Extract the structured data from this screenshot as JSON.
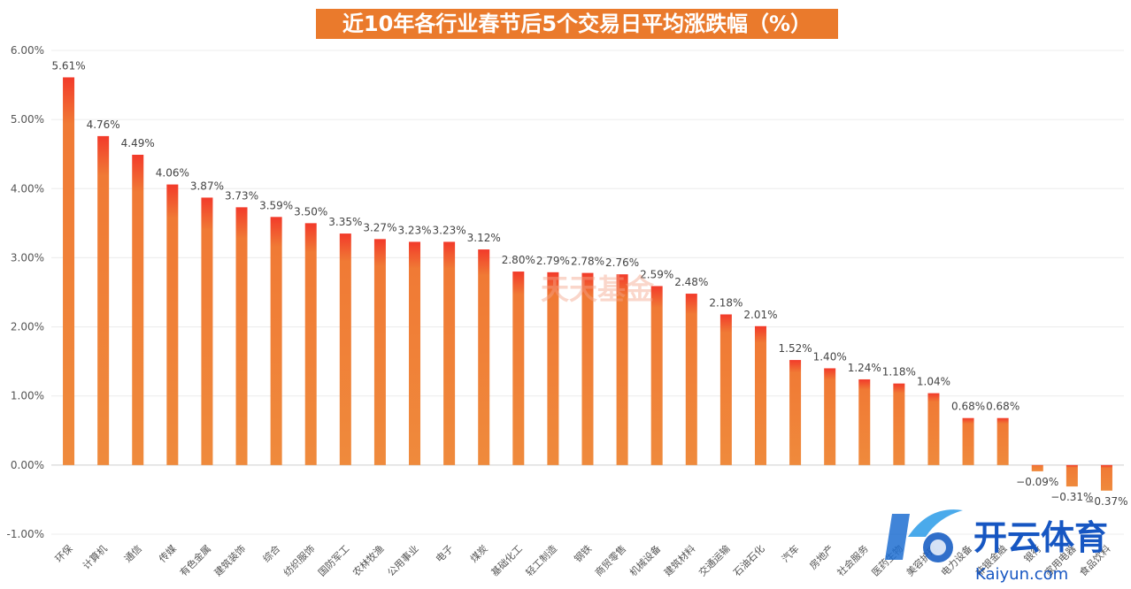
{
  "chart_data": {
    "type": "bar",
    "title": "近10年各行业春节后5个交易日平均涨跌幅（%）",
    "categories": [
      "环保",
      "计算机",
      "通信",
      "传媒",
      "有色金属",
      "建筑装饰",
      "综合",
      "纺织服饰",
      "国防军工",
      "农林牧渔",
      "公用事业",
      "电子",
      "煤炭",
      "基础化工",
      "轻工制造",
      "钢铁",
      "商贸零售",
      "机械设备",
      "建筑材料",
      "交通运输",
      "石油石化",
      "汽车",
      "房地产",
      "社会服务",
      "医药生物",
      "美容护理",
      "电力设备",
      "非银金融",
      "银行",
      "家用电器",
      "食品饮料"
    ],
    "values": [
      5.61,
      4.76,
      4.49,
      4.06,
      3.87,
      3.73,
      3.59,
      3.5,
      3.35,
      3.27,
      3.23,
      3.23,
      3.12,
      2.8,
      2.79,
      2.78,
      2.76,
      2.59,
      2.48,
      2.18,
      2.01,
      1.52,
      1.4,
      1.24,
      1.18,
      1.04,
      0.68,
      0.68,
      -0.09,
      -0.31,
      -0.37
    ],
    "value_labels": [
      "5.61%",
      "4.76%",
      "4.49%",
      "4.06%",
      "3.87%",
      "3.73%",
      "3.59%",
      "3.50%",
      "3.35%",
      "3.27%",
      "3.23%",
      "3.23%",
      "3.12%",
      "2.80%",
      "2.79%",
      "2.78%",
      "2.76%",
      "2.59%",
      "2.48%",
      "2.18%",
      "2.01%",
      "1.52%",
      "1.40%",
      "1.24%",
      "1.18%",
      "1.04%",
      "0.68%",
      "0.68%",
      "−0.09%",
      "−0.31%",
      "−0.37%"
    ],
    "y_ticks": [
      6,
      5,
      4,
      3,
      2,
      1,
      0,
      -1
    ],
    "y_tick_labels": [
      "6.00%",
      "5.00%",
      "4.00%",
      "3.00%",
      "2.00%",
      "1.00%",
      "0.00%",
      "-1.00%"
    ],
    "ylim": [
      -1,
      6
    ],
    "xlabel": "",
    "ylabel": "",
    "grid": true,
    "colors": {
      "bar_bottom": "#f08a3a",
      "bar_top": "#f23a2a"
    }
  },
  "watermarks": {
    "center": "天天基金",
    "brand_cn": "开云体育",
    "brand_url": "Kaiyun.com"
  },
  "colors": {
    "title_bg": "#ea7a2c",
    "title_text": "#ffffff"
  }
}
